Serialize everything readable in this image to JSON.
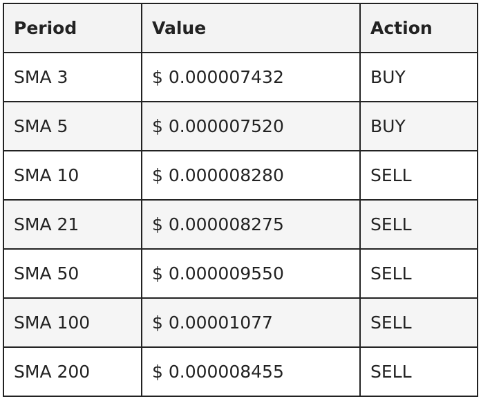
{
  "table": {
    "headers": [
      "Period",
      "Value",
      "Action"
    ],
    "rows": [
      {
        "period": "SMA 3",
        "value": "$ 0.000007432",
        "action": "BUY"
      },
      {
        "period": "SMA 5",
        "value": "$ 0.000007520",
        "action": "BUY"
      },
      {
        "period": "SMA 10",
        "value": "$ 0.000008280",
        "action": "SELL"
      },
      {
        "period": "SMA 21",
        "value": "$ 0.000008275",
        "action": "SELL"
      },
      {
        "period": "SMA 50",
        "value": "$ 0.000009550",
        "action": "SELL"
      },
      {
        "period": "SMA 100",
        "value": "$ 0.00001077",
        "action": "SELL"
      },
      {
        "period": "SMA 200",
        "value": "$ 0.000008455",
        "action": "SELL"
      }
    ]
  }
}
